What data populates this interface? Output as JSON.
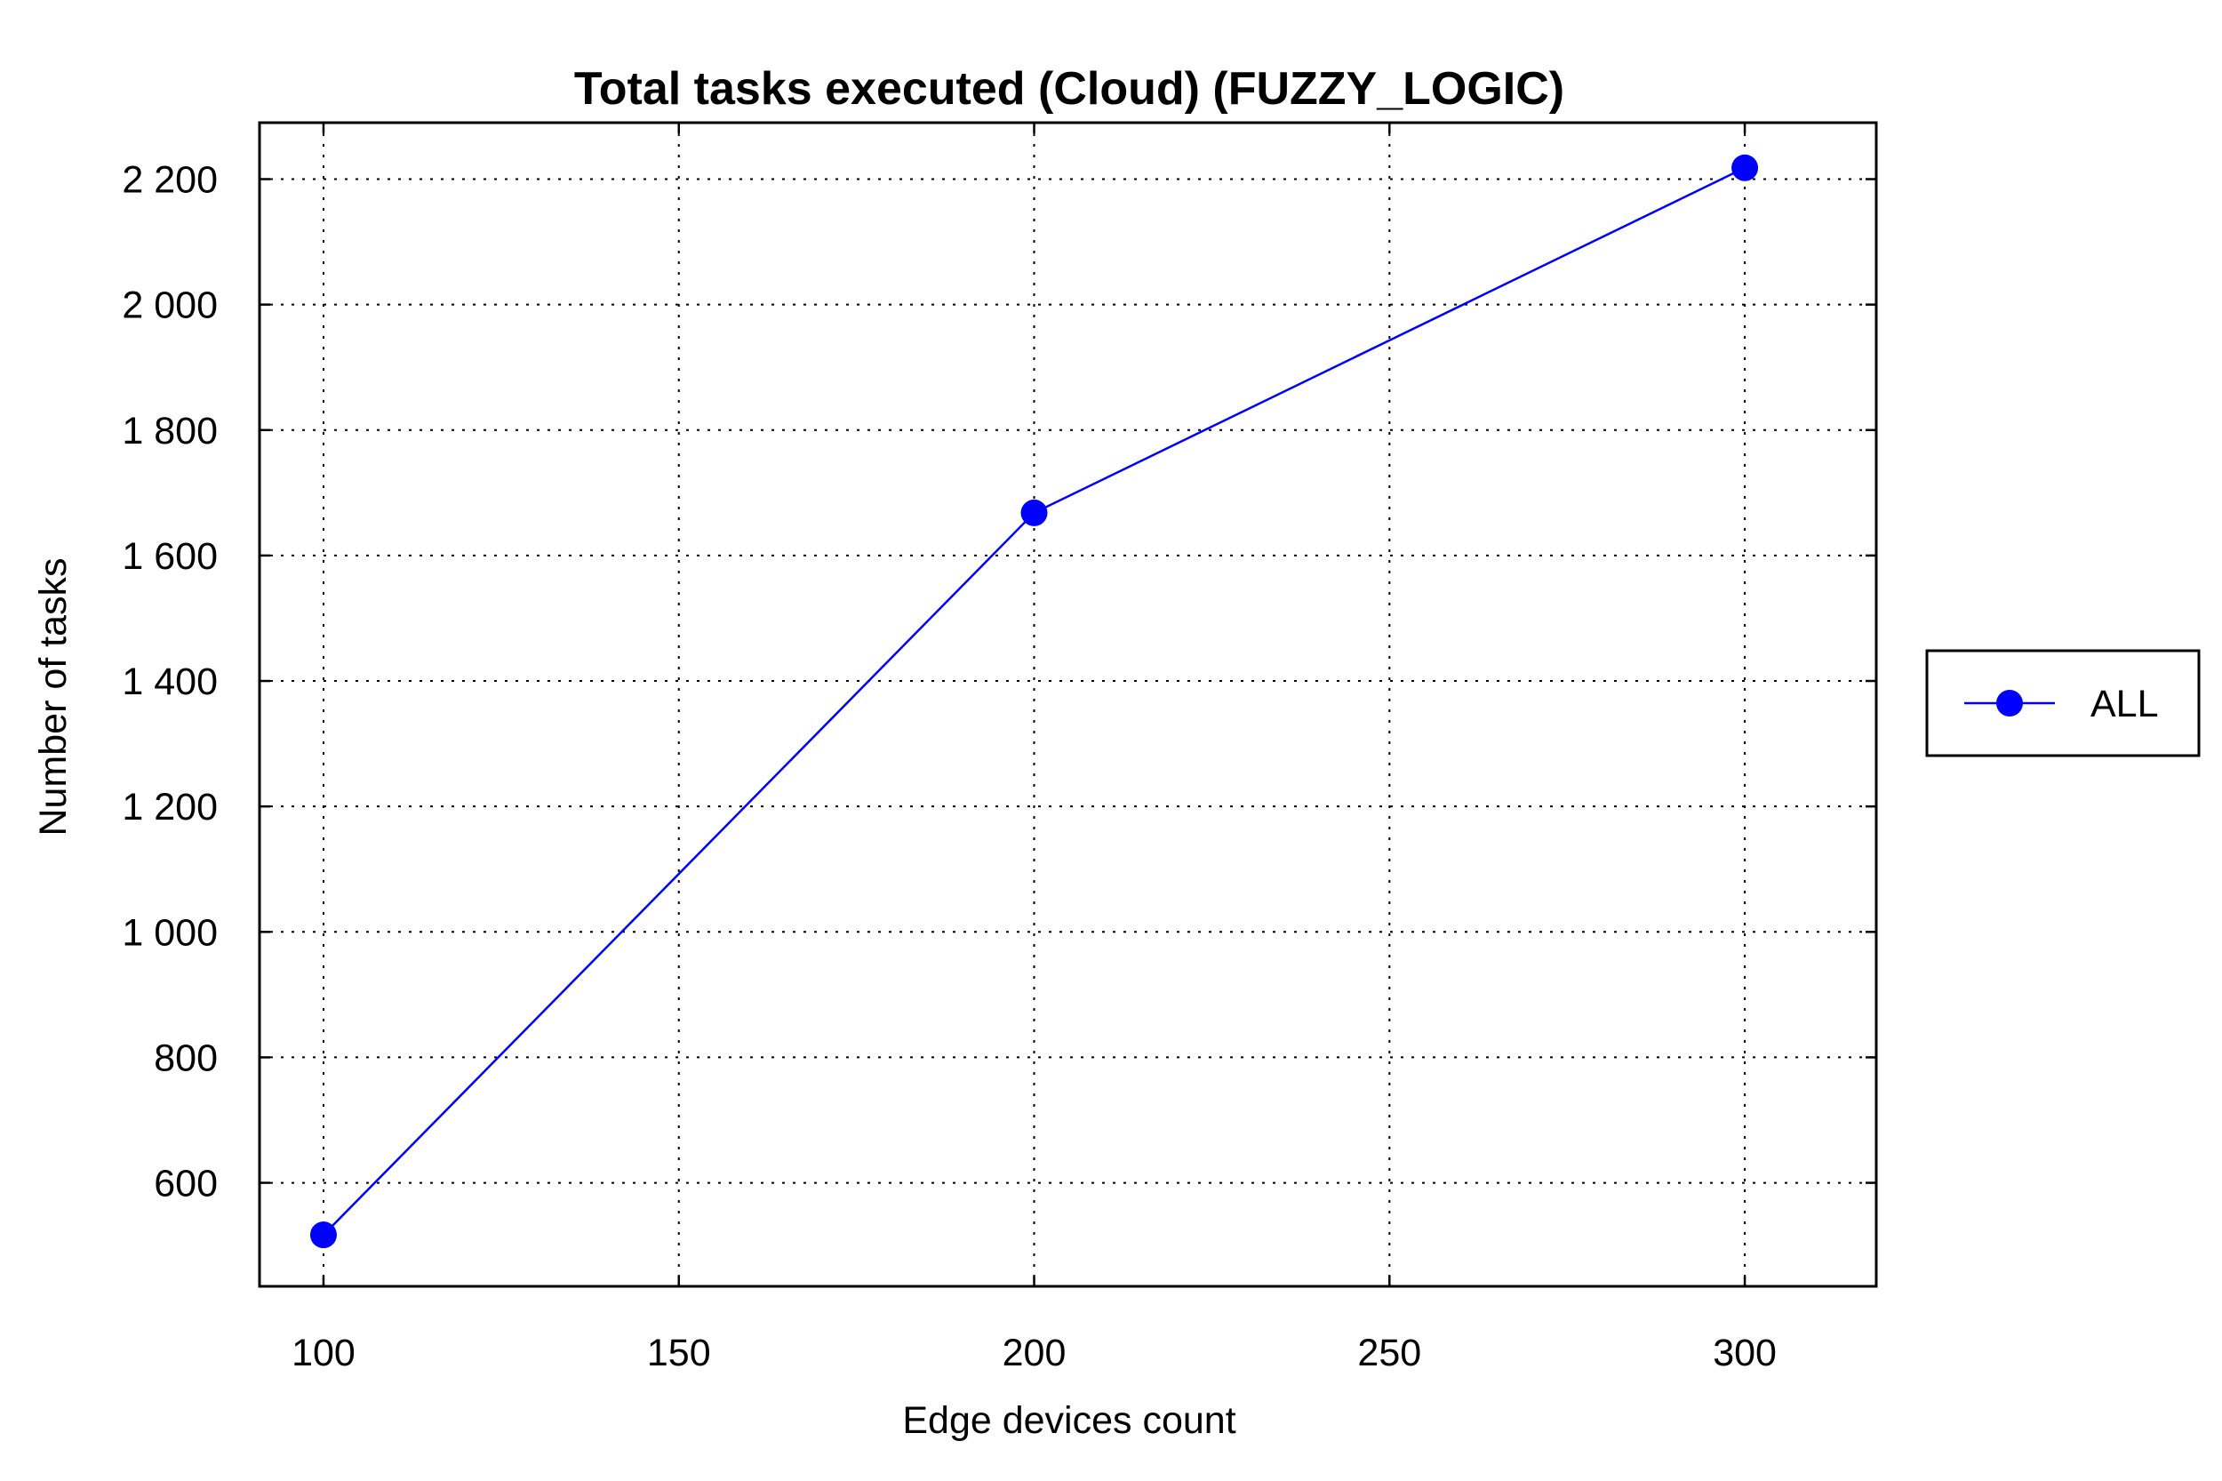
{
  "chart_data": {
    "type": "line",
    "title": "Total tasks executed (Cloud) (FUZZY_LOGIC)",
    "xlabel": "Edge devices count",
    "ylabel": "Number of tasks",
    "x": [
      100,
      200,
      300
    ],
    "series": [
      {
        "name": "ALL",
        "values": [
          517,
          1668,
          2218
        ],
        "color": "#0000ff",
        "marker": "circle"
      }
    ],
    "xlim": [
      91,
      318.5
    ],
    "ylim": [
      435,
      2290
    ],
    "xticks": [
      100,
      150,
      200,
      250,
      300
    ],
    "xtick_labels": [
      "100",
      "150",
      "200",
      "250",
      "300"
    ],
    "yticks": [
      600,
      800,
      1000,
      1200,
      1400,
      1600,
      1800,
      2000,
      2200
    ],
    "ytick_labels": [
      "600",
      "800",
      "1 000",
      "1 200",
      "1 400",
      "1 600",
      "1 800",
      "2 000",
      "2 200"
    ],
    "grid": true,
    "legend_position": "right"
  }
}
